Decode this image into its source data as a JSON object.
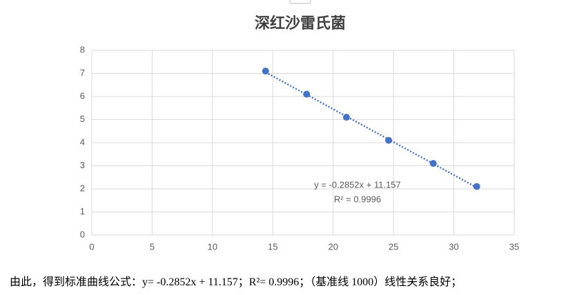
{
  "chart_data": {
    "type": "scatter",
    "title": "深红沙雷氏菌",
    "x": [
      14.4,
      17.8,
      21.1,
      24.6,
      28.3,
      31.9
    ],
    "values": [
      7.1,
      6.1,
      5.1,
      4.1,
      3.1,
      2.1
    ],
    "color": "#4472c4",
    "xlim": [
      0,
      35
    ],
    "xticks": [
      0,
      5,
      10,
      15,
      20,
      25,
      30,
      35
    ],
    "ylim": [
      0,
      8
    ],
    "yticks": [
      0,
      1,
      2,
      3,
      4,
      5,
      6,
      7,
      8
    ],
    "grid": true,
    "trendline": {
      "slope": -0.2852,
      "intercept": 11.157,
      "equation": "y = -0.2852x + 11.157",
      "r_squared": "R² = 0.9996"
    }
  },
  "caption": "由此，得到标准曲线公式：y= -0.2852x + 11.157；R²= 0.9996；（基准线 1000）线性关系良好；"
}
